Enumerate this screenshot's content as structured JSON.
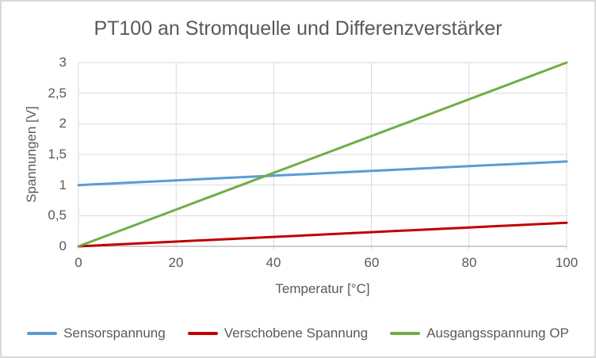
{
  "chart_data": {
    "type": "line",
    "title": "PT100 an Stromquelle und Differenzverstärker",
    "xlabel": "Temperatur [°C]",
    "ylabel": "Spannungen [V]",
    "xlim": [
      0,
      100
    ],
    "ylim": [
      0,
      3
    ],
    "grid": true,
    "legend_position": "bottom",
    "gridline_color": "#d9d9d9",
    "axis_color": "#bfbfbf",
    "text_color": "#595959",
    "x": [
      0,
      20,
      40,
      60,
      80,
      100
    ],
    "xticks": [
      "0",
      "20",
      "40",
      "60",
      "80",
      "100"
    ],
    "xtick_values": [
      0,
      20,
      40,
      60,
      80,
      100
    ],
    "yticks": [
      "3",
      "2,5",
      "2",
      "1,5",
      "1",
      "0,5",
      "0"
    ],
    "ytick_values": [
      3,
      2.5,
      2,
      1.5,
      1,
      0.5,
      0
    ],
    "series": [
      {
        "name": "Sensorspannung",
        "color": "#5b9bd5",
        "values": [
          1.0,
          1.077,
          1.154,
          1.231,
          1.308,
          1.385
        ]
      },
      {
        "name": "Verschobene Spannung",
        "color": "#c00000",
        "values": [
          0,
          0.077,
          0.154,
          0.231,
          0.308,
          0.385
        ]
      },
      {
        "name": "Ausgangsspannung OP",
        "color": "#70ad47",
        "values": [
          0,
          0.6,
          1.2,
          1.8,
          2.4,
          3.0
        ]
      }
    ]
  }
}
